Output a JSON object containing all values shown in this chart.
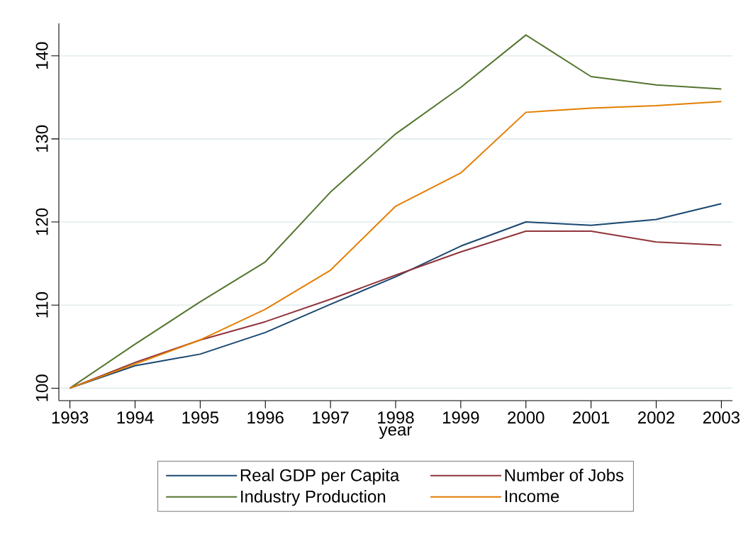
{
  "chart_data": {
    "type": "line",
    "xlabel": "year",
    "x": [
      1993,
      1994,
      1995,
      1996,
      1997,
      1998,
      1999,
      2000,
      2001,
      2002,
      2003
    ],
    "series": [
      {
        "name": "Real GDP per Capita",
        "color": "#1a476f",
        "values": [
          100,
          102.7,
          104.1,
          106.7,
          110.1,
          113.4,
          117.1,
          120.0,
          119.6,
          120.3,
          122.2
        ]
      },
      {
        "name": "Number of Jobs",
        "color": "#90353b",
        "values": [
          100,
          103.1,
          105.8,
          108.0,
          110.7,
          113.6,
          116.4,
          118.9,
          118.9,
          117.6,
          117.2
        ]
      },
      {
        "name": "Industry Production",
        "color": "#55752f",
        "values": [
          100,
          105.3,
          110.4,
          115.2,
          123.6,
          130.6,
          136.2,
          142.5,
          137.5,
          136.5,
          136.0
        ]
      },
      {
        "name": "Income",
        "color": "#e37e00",
        "values": [
          100,
          102.9,
          105.8,
          109.5,
          114.2,
          121.9,
          125.9,
          133.2,
          133.7,
          134.0,
          134.5
        ]
      }
    ],
    "xlim": [
      1992.83,
      2003.17
    ],
    "ylim": [
      98.5,
      143.9
    ],
    "xticks": [
      1993,
      1994,
      1995,
      1996,
      1997,
      1998,
      1999,
      2000,
      2001,
      2002,
      2003
    ],
    "yticks": [
      100,
      110,
      120,
      130,
      140
    ],
    "grid": "y",
    "legend": "bottom",
    "marker": "none",
    "line_style": "solid"
  }
}
